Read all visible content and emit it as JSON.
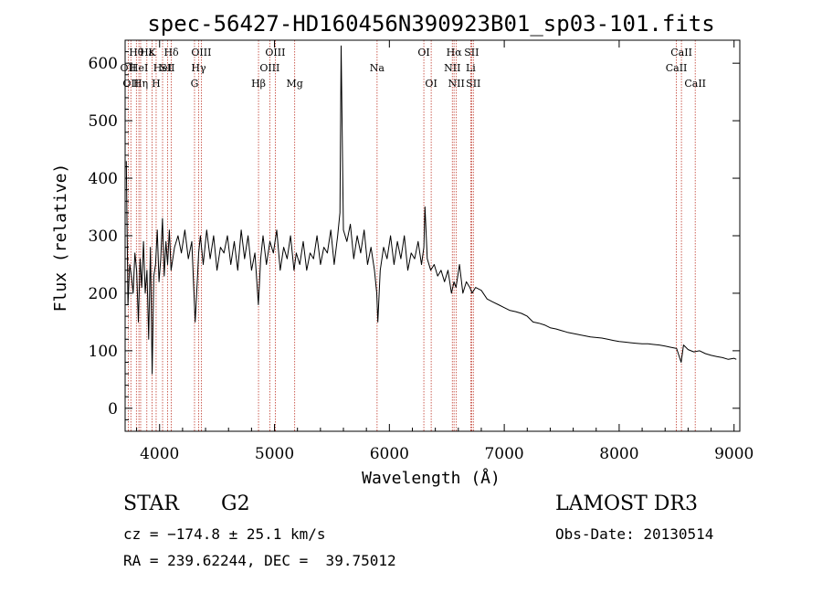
{
  "chart_data": {
    "type": "line",
    "title": "spec-56427-HD160456N390923B01_sp03-101.fits",
    "xlabel": "Wavelength (Å)",
    "ylabel": "Flux (relative)",
    "xlim": [
      3700,
      9050
    ],
    "ylim": [
      -40,
      640
    ],
    "x_ticks": [
      4000,
      5000,
      6000,
      7000,
      8000,
      9000
    ],
    "y_ticks": [
      0,
      100,
      200,
      300,
      400,
      500,
      600
    ],
    "grid": false,
    "series": [
      {
        "name": "flux",
        "x": [
          3710,
          3725,
          3740,
          3755,
          3770,
          3785,
          3800,
          3815,
          3830,
          3845,
          3860,
          3875,
          3890,
          3905,
          3920,
          3935,
          3950,
          3965,
          3980,
          3995,
          4010,
          4025,
          4040,
          4055,
          4070,
          4085,
          4100,
          4130,
          4160,
          4190,
          4220,
          4250,
          4280,
          4310,
          4330,
          4340,
          4355,
          4380,
          4410,
          4440,
          4470,
          4500,
          4530,
          4560,
          4590,
          4620,
          4650,
          4680,
          4710,
          4740,
          4770,
          4800,
          4830,
          4860,
          4880,
          4900,
          4930,
          4960,
          4990,
          5020,
          5050,
          5080,
          5110,
          5140,
          5170,
          5190,
          5220,
          5250,
          5280,
          5310,
          5340,
          5370,
          5400,
          5430,
          5460,
          5490,
          5520,
          5550,
          5570,
          5580,
          5600,
          5630,
          5660,
          5690,
          5720,
          5750,
          5780,
          5810,
          5840,
          5870,
          5890,
          5900,
          5920,
          5950,
          5980,
          6010,
          6040,
          6070,
          6100,
          6130,
          6160,
          6190,
          6220,
          6250,
          6280,
          6300,
          6310,
          6330,
          6360,
          6390,
          6420,
          6450,
          6480,
          6510,
          6540,
          6563,
          6580,
          6610,
          6640,
          6670,
          6700,
          6720,
          6750,
          6800,
          6850,
          6900,
          6950,
          7000,
          7050,
          7100,
          7150,
          7200,
          7250,
          7300,
          7350,
          7400,
          7450,
          7500,
          7550,
          7600,
          7650,
          7700,
          7750,
          7800,
          7850,
          7900,
          7950,
          8000,
          8050,
          8100,
          8150,
          8200,
          8250,
          8300,
          8350,
          8400,
          8450,
          8500,
          8540,
          8560,
          8600,
          8650,
          8700,
          8750,
          8800,
          8850,
          8900,
          8950,
          9000,
          9020
        ],
        "y": [
          430,
          180,
          250,
          230,
          200,
          270,
          240,
          150,
          260,
          210,
          290,
          200,
          240,
          120,
          280,
          60,
          230,
          250,
          310,
          220,
          260,
          330,
          230,
          290,
          250,
          310,
          240,
          280,
          300,
          270,
          310,
          260,
          290,
          150,
          230,
          270,
          300,
          250,
          310,
          260,
          300,
          240,
          280,
          270,
          300,
          250,
          290,
          240,
          310,
          260,
          300,
          240,
          270,
          180,
          260,
          300,
          250,
          290,
          270,
          310,
          240,
          280,
          260,
          300,
          240,
          270,
          250,
          290,
          240,
          270,
          260,
          300,
          250,
          280,
          270,
          310,
          250,
          300,
          340,
          630,
          310,
          290,
          320,
          260,
          300,
          270,
          310,
          250,
          280,
          240,
          200,
          150,
          240,
          280,
          260,
          300,
          250,
          290,
          260,
          300,
          240,
          270,
          260,
          290,
          250,
          280,
          350,
          260,
          240,
          250,
          230,
          240,
          220,
          240,
          200,
          220,
          210,
          250,
          200,
          220,
          210,
          200,
          210,
          205,
          190,
          185,
          180,
          175,
          170,
          168,
          165,
          160,
          150,
          148,
          145,
          140,
          138,
          135,
          132,
          130,
          128,
          126,
          124,
          123,
          122,
          120,
          118,
          116,
          115,
          114,
          113,
          112,
          112,
          111,
          110,
          108,
          106,
          104,
          80,
          110,
          102,
          98,
          100,
          95,
          92,
          90,
          88,
          85,
          87,
          85
        ]
      }
    ],
    "lines": [
      {
        "wl": 3727,
        "label": "OII",
        "row": 1
      },
      {
        "wl": 3750,
        "label": "OII",
        "row": 2
      },
      {
        "wl": 3798,
        "label": "Hθ",
        "row": 0
      },
      {
        "wl": 3820,
        "label": "HeI",
        "row": 1
      },
      {
        "wl": 3835,
        "label": "Hη",
        "row": 2
      },
      {
        "wl": 3889,
        "label": "Hε",
        "row": 0
      },
      {
        "wl": 3934,
        "label": "K",
        "row": 0
      },
      {
        "wl": 3970,
        "label": "H",
        "row": 2
      },
      {
        "wl": 4026,
        "label": "HeI",
        "row": 1
      },
      {
        "wl": 4069,
        "label": "SII",
        "row": 1
      },
      {
        "wl": 4102,
        "label": "Hδ",
        "row": 0
      },
      {
        "wl": 4304,
        "label": "G",
        "row": 2
      },
      {
        "wl": 4340,
        "label": "Hγ",
        "row": 1
      },
      {
        "wl": 4363,
        "label": "OIII",
        "row": 0
      },
      {
        "wl": 4861,
        "label": "Hβ",
        "row": 2
      },
      {
        "wl": 4959,
        "label": "OIII",
        "row": 1
      },
      {
        "wl": 5007,
        "label": "OIII",
        "row": 0
      },
      {
        "wl": 5176,
        "label": "Mg",
        "row": 2
      },
      {
        "wl": 5893,
        "label": "Na",
        "row": 1
      },
      {
        "wl": 6300,
        "label": "OI",
        "row": 0
      },
      {
        "wl": 6364,
        "label": "OI",
        "row": 2
      },
      {
        "wl": 6548,
        "label": "NII",
        "row": 1
      },
      {
        "wl": 6563,
        "label": "Hα",
        "row": 0
      },
      {
        "wl": 6583,
        "label": "NII",
        "row": 2
      },
      {
        "wl": 6708,
        "label": "Li",
        "row": 1
      },
      {
        "wl": 6716,
        "label": "SII",
        "row": 0
      },
      {
        "wl": 6731,
        "label": "SII",
        "row": 2
      },
      {
        "wl": 8498,
        "label": "CaII",
        "row": 1
      },
      {
        "wl": 8542,
        "label": "CaII",
        "row": 0
      },
      {
        "wl": 8662,
        "label": "CaII",
        "row": 2
      }
    ]
  },
  "info": {
    "object_class": "STAR",
    "subclass": "G2",
    "survey": "LAMOST DR3",
    "redshift": "cz = −174.8 ± 25.1 km/s",
    "obs_date": "Obs-Date: 20130514",
    "coords": "RA = 239.62244, DEC =  39.75012"
  }
}
